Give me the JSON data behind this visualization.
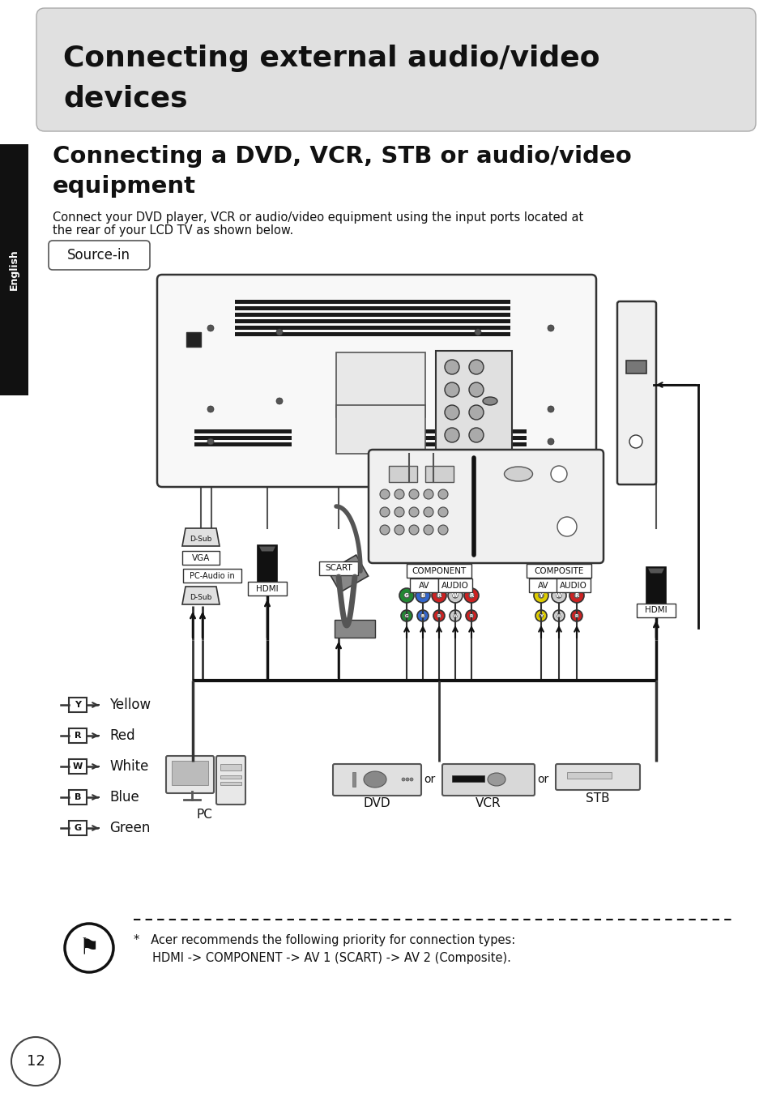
{
  "bg_color": "#ffffff",
  "title_box_color": "#e0e0e0",
  "title_text_line1": "Connecting external audio/video",
  "title_text_line2": "devices",
  "subtitle_line1": "Connecting a DVD, VCR, STB or audio/video",
  "subtitle_line2": "equipment",
  "body_line1": "Connect your DVD player, VCR or audio/video equipment using the input ports located at",
  "body_line2": "the rear of your LCD TV as shown below.",
  "source_in_text": "Source-in",
  "sidebar_color": "#111111",
  "sidebar_text": "English",
  "note_text1": "*   Acer recommends the following priority for connection types:",
  "note_text2": "     HDMI -> COMPONENT -> AV 1 (SCART) -> AV 2 (Composite).",
  "page_number": "12",
  "legend_items": [
    {
      "symbol": "Y",
      "label": "Yellow"
    },
    {
      "symbol": "R",
      "label": "Red"
    },
    {
      "symbol": "W",
      "label": "White"
    },
    {
      "symbol": "B",
      "label": "Blue"
    },
    {
      "symbol": "G",
      "label": "Green"
    }
  ]
}
